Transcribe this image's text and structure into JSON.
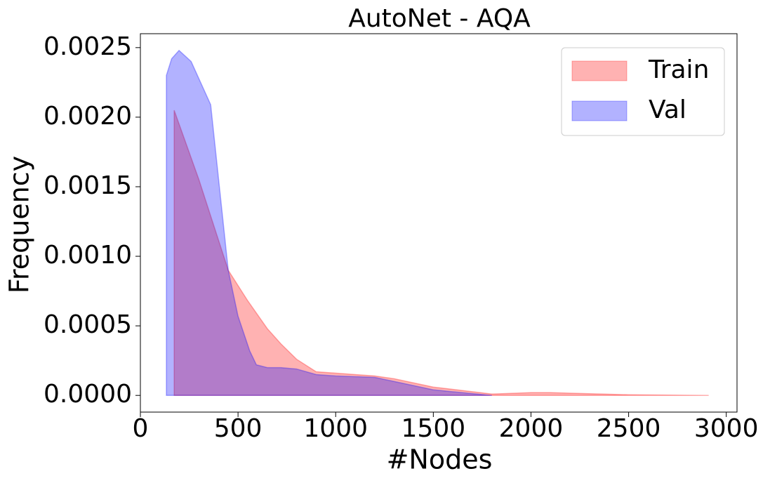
{
  "chart_data": {
    "type": "area",
    "title": "AutoNet - AQA",
    "x_label": "#Nodes",
    "y_label": "Frequency",
    "xlim": [
      0,
      3055
    ],
    "ylim": [
      -0.00012,
      0.0026
    ],
    "xticks": [
      0,
      500,
      1000,
      1500,
      2000,
      2500,
      3000
    ],
    "yticks": [
      {
        "value": 0,
        "label": "0.0000"
      },
      {
        "value": 0.0005,
        "label": "0.0005"
      },
      {
        "value": 0.001,
        "label": "0.0010"
      },
      {
        "value": 0.0015,
        "label": "0.0015"
      },
      {
        "value": 0.002,
        "label": "0.0020"
      },
      {
        "value": 0.0025,
        "label": "0.0025"
      }
    ],
    "legend": "upper right",
    "series": [
      {
        "name": "Train",
        "color": "#ff0000",
        "x": [
          173,
          300,
          450,
          550,
          650,
          720,
          800,
          900,
          1000,
          1100,
          1200,
          1300,
          1500,
          1800,
          2000,
          2100,
          2500,
          2910
        ],
        "values": [
          0.00205,
          0.00155,
          0.0009,
          0.00068,
          0.00048,
          0.00037,
          0.00026,
          0.00017,
          0.00016,
          0.00015,
          0.00014,
          0.00012,
          6e-05,
          1e-05,
          2e-05,
          2e-05,
          5e-06,
          0
        ]
      },
      {
        "name": "Val",
        "color": "#0000ff",
        "x": [
          133,
          160,
          198,
          260,
          360,
          450,
          500,
          560,
          594,
          650,
          720,
          800,
          900,
          1000,
          1200,
          1300,
          1500,
          1800
        ],
        "values": [
          0.0023,
          0.00242,
          0.00248,
          0.0024,
          0.00209,
          0.0009,
          0.00057,
          0.00032,
          0.00022,
          0.0002,
          0.0002,
          0.00019,
          0.00015,
          0.00014,
          0.00013,
          0.0001,
          4e-05,
          0
        ]
      }
    ]
  }
}
